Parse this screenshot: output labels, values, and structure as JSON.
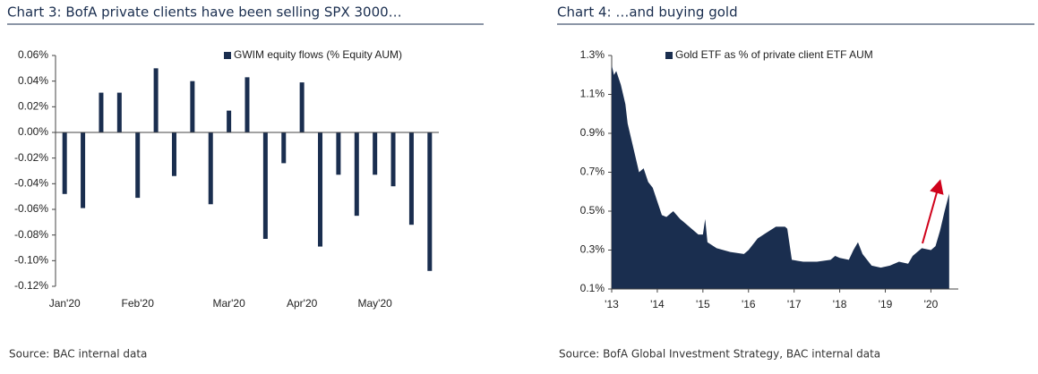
{
  "chart_data": [
    {
      "type": "bar",
      "title": "Chart 3: BofA private clients have been selling SPX 3000…",
      "source": "Source: BAC internal data",
      "categories": [
        "Jan'20",
        null,
        null,
        null,
        "Feb'20",
        null,
        null,
        null,
        null,
        "Mar'20",
        null,
        null,
        null,
        "Apr'20",
        null,
        null,
        null,
        "May'20",
        null,
        null,
        null
      ],
      "series": [
        {
          "name": "GWIM equity flows (% Equity AUM)",
          "color": "#1a2e4f",
          "values": [
            -0.048,
            -0.059,
            0.031,
            0.031,
            -0.051,
            0.05,
            -0.034,
            0.04,
            -0.056,
            0.017,
            0.043,
            -0.083,
            -0.024,
            0.039,
            -0.089,
            -0.033,
            -0.065,
            -0.033,
            -0.042,
            -0.072,
            -0.108
          ]
        }
      ],
      "ylim": [
        -0.12,
        0.06
      ],
      "yticks": [
        {
          "value": -0.12,
          "label": "-0.12%"
        },
        {
          "value": -0.1,
          "label": "-0.10%"
        },
        {
          "value": -0.08,
          "label": "-0.08%"
        },
        {
          "value": -0.06,
          "label": "-0.06%"
        },
        {
          "value": -0.04,
          "label": "-0.04%"
        },
        {
          "value": -0.02,
          "label": "-0.02%"
        },
        {
          "value": 0,
          "label": "0.00%"
        },
        {
          "value": 0.02,
          "label": "0.02%"
        },
        {
          "value": 0.04,
          "label": "0.04%"
        },
        {
          "value": 0.06,
          "label": "0.06%"
        }
      ],
      "legend": "upper right"
    },
    {
      "type": "area",
      "title": "Chart 4: …and buying gold",
      "source": "Source: BofA Global Investment Strategy, BAC internal data",
      "x": [
        2013.0,
        2013.05,
        2013.1,
        2013.2,
        2013.3,
        2013.35,
        2013.45,
        2013.5,
        2013.6,
        2013.7,
        2013.8,
        2013.9,
        2014.0,
        2014.1,
        2014.2,
        2014.35,
        2014.5,
        2014.7,
        2014.9,
        2015.0,
        2015.05,
        2015.1,
        2015.3,
        2015.6,
        2015.9,
        2016.0,
        2016.2,
        2016.4,
        2016.6,
        2016.8,
        2016.85,
        2016.95,
        2017.2,
        2017.5,
        2017.8,
        2017.9,
        2018.0,
        2018.2,
        2018.3,
        2018.4,
        2018.5,
        2018.7,
        2018.9,
        2019.1,
        2019.3,
        2019.5,
        2019.6,
        2019.8,
        2020.0,
        2020.1,
        2020.2,
        2020.3,
        2020.4
      ],
      "series": [
        {
          "name": "Gold ETF as % of private client ETF AUM",
          "color": "#1a2e4f",
          "values": [
            1.25,
            1.2,
            1.22,
            1.15,
            1.05,
            0.95,
            0.85,
            0.8,
            0.7,
            0.72,
            0.65,
            0.62,
            0.55,
            0.48,
            0.47,
            0.5,
            0.46,
            0.42,
            0.38,
            0.38,
            0.46,
            0.34,
            0.31,
            0.29,
            0.28,
            0.3,
            0.36,
            0.39,
            0.42,
            0.42,
            0.41,
            0.25,
            0.24,
            0.24,
            0.25,
            0.27,
            0.26,
            0.25,
            0.3,
            0.34,
            0.28,
            0.22,
            0.21,
            0.22,
            0.24,
            0.23,
            0.27,
            0.31,
            0.3,
            0.32,
            0.4,
            0.5,
            0.59
          ]
        }
      ],
      "xlim": [
        2013,
        2020.6
      ],
      "xticks": [
        {
          "value": 2013,
          "label": "'13"
        },
        {
          "value": 2014,
          "label": "'14"
        },
        {
          "value": 2015,
          "label": "'15"
        },
        {
          "value": 2016,
          "label": "'16"
        },
        {
          "value": 2017,
          "label": "'17"
        },
        {
          "value": 2018,
          "label": "'18"
        },
        {
          "value": 2019,
          "label": "'19"
        },
        {
          "value": 2020,
          "label": "'20"
        }
      ],
      "ylim": [
        0.1,
        1.3
      ],
      "yticks": [
        {
          "value": 0.1,
          "label": "0.1%"
        },
        {
          "value": 0.3,
          "label": "0.3%"
        },
        {
          "value": 0.5,
          "label": "0.5%"
        },
        {
          "value": 0.7,
          "label": "0.7%"
        },
        {
          "value": 0.9,
          "label": "0.9%"
        },
        {
          "value": 1.1,
          "label": "1.1%"
        },
        {
          "value": 1.3,
          "label": "1.3%"
        }
      ],
      "legend": "upper left"
    }
  ]
}
